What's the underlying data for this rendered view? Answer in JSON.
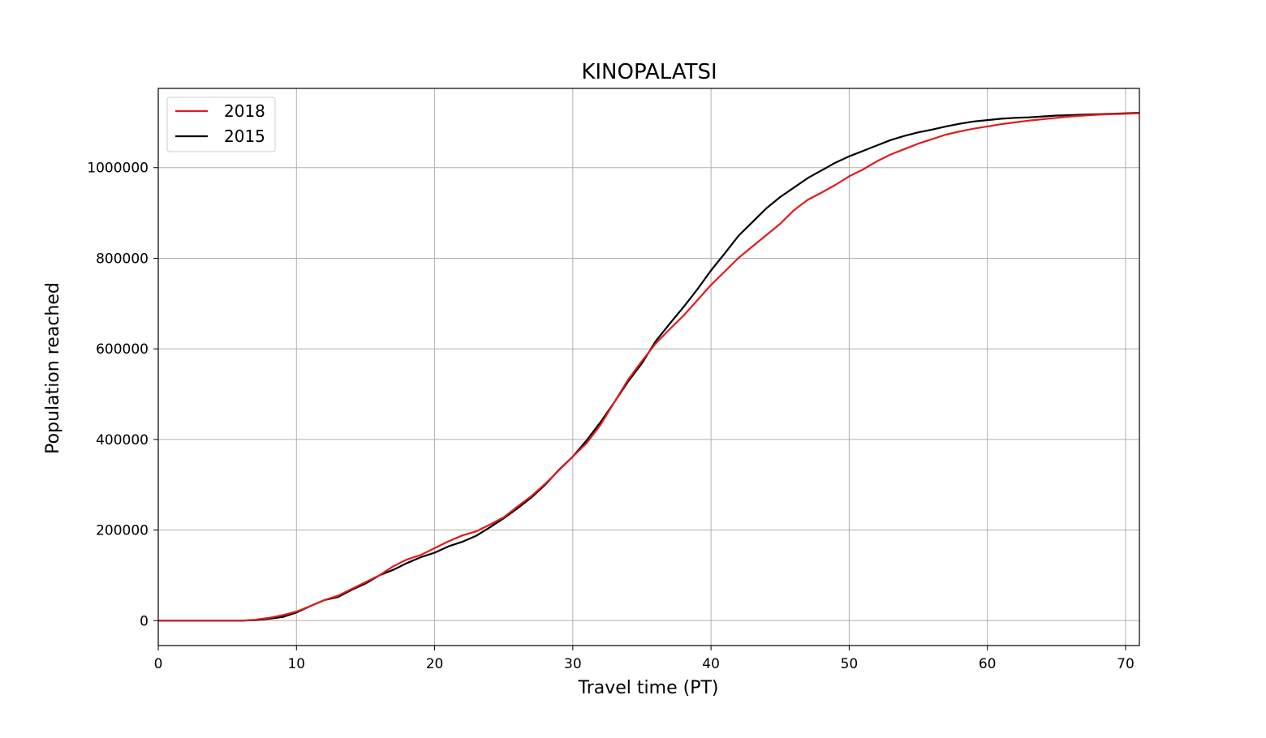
{
  "chart_data": {
    "type": "line",
    "title": "KINOPALATSI",
    "xlabel": "Travel time (PT)",
    "ylabel": "Population reached",
    "xlim": [
      0,
      71
    ],
    "ylim": [
      -55000,
      1175000
    ],
    "xticks": [
      0,
      10,
      20,
      30,
      40,
      50,
      60,
      70
    ],
    "yticks": [
      0,
      200000,
      400000,
      600000,
      800000,
      1000000
    ],
    "grid": true,
    "legend_position": "upper-left",
    "series": [
      {
        "name": "2018",
        "color": "#e41a1c",
        "x": [
          0,
          1,
          2,
          3,
          4,
          5,
          6,
          7,
          8,
          9,
          10,
          11,
          12,
          13,
          14,
          15,
          16,
          17,
          18,
          19,
          20,
          21,
          22,
          23,
          24,
          25,
          26,
          27,
          28,
          29,
          30,
          31,
          32,
          33,
          34,
          35,
          36,
          37,
          38,
          39,
          40,
          41,
          42,
          43,
          44,
          45,
          46,
          47,
          48,
          49,
          50,
          51,
          52,
          53,
          54,
          55,
          56,
          57,
          58,
          59,
          60,
          61,
          62,
          63,
          64,
          65,
          66,
          67,
          68,
          69,
          70,
          71
        ],
        "values": [
          0,
          0,
          0,
          0,
          0,
          0,
          0,
          2000,
          6000,
          12000,
          20000,
          32000,
          45000,
          55000,
          70000,
          85000,
          100000,
          120000,
          135000,
          145000,
          160000,
          175000,
          188000,
          197000,
          212000,
          228000,
          252000,
          275000,
          302000,
          332000,
          362000,
          392000,
          432000,
          482000,
          532000,
          573000,
          612000,
          643000,
          673000,
          707000,
          741000,
          771000,
          801000,
          826000,
          851000,
          876000,
          906000,
          929000,
          945000,
          962000,
          981000,
          996000,
          1014000,
          1029000,
          1041000,
          1053000,
          1063000,
          1073000,
          1080000,
          1086000,
          1091000,
          1096000,
          1100000,
          1104000,
          1107000,
          1110000,
          1113000,
          1115000,
          1117000,
          1118000,
          1119000,
          1120000
        ]
      },
      {
        "name": "2015",
        "color": "#000000",
        "x": [
          0,
          1,
          2,
          3,
          4,
          5,
          6,
          7,
          8,
          9,
          10,
          11,
          12,
          13,
          14,
          15,
          16,
          17,
          18,
          19,
          20,
          21,
          22,
          23,
          24,
          25,
          26,
          27,
          28,
          29,
          30,
          31,
          32,
          33,
          34,
          35,
          36,
          37,
          38,
          39,
          40,
          41,
          42,
          43,
          44,
          45,
          46,
          47,
          48,
          49,
          50,
          51,
          52,
          53,
          54,
          55,
          56,
          57,
          58,
          59,
          60,
          61,
          62,
          63,
          64,
          65,
          66,
          67,
          68,
          69,
          70,
          71
        ],
        "values": [
          0,
          0,
          0,
          0,
          0,
          0,
          0,
          1000,
          4000,
          8000,
          18000,
          32000,
          45000,
          52000,
          68000,
          82000,
          100000,
          112000,
          127000,
          140000,
          150000,
          164000,
          174000,
          187000,
          206000,
          226000,
          248000,
          272000,
          300000,
          333000,
          362000,
          398000,
          438000,
          482000,
          528000,
          568000,
          617000,
          655000,
          692000,
          731000,
          773000,
          811000,
          850000,
          880000,
          910000,
          935000,
          956000,
          977000,
          994000,
          1011000,
          1025000,
          1037000,
          1049000,
          1061000,
          1070000,
          1078000,
          1084000,
          1091000,
          1097000,
          1102000,
          1105000,
          1108000,
          1110000,
          1111000,
          1113000,
          1115000,
          1116000,
          1117000,
          1118000,
          1119000,
          1120000,
          1121000
        ]
      }
    ]
  }
}
